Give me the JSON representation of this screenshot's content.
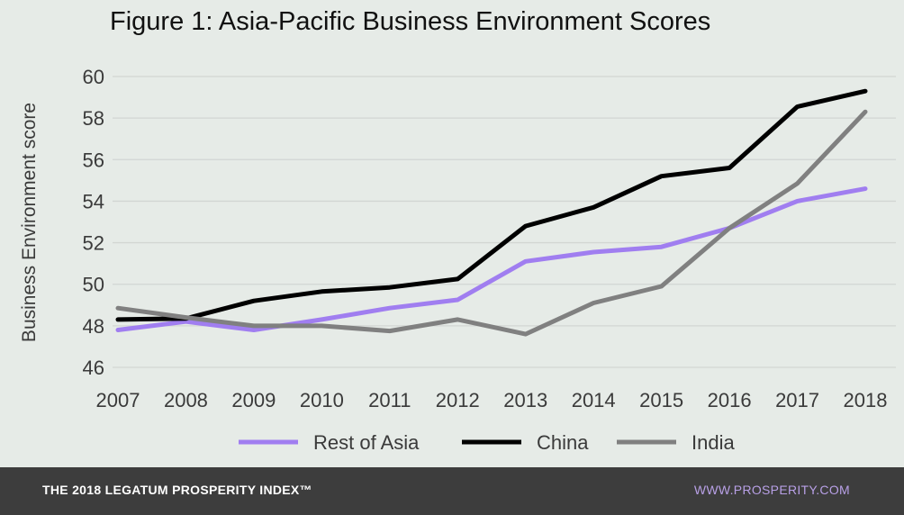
{
  "chart_data": {
    "type": "line",
    "title": "Figure 1: Asia-Pacific Business Environment Scores",
    "xlabel": "",
    "ylabel": "Business Environment score",
    "x": [
      "2007",
      "2008",
      "2009",
      "2010",
      "2011",
      "2012",
      "2013",
      "2014",
      "2015",
      "2016",
      "2017",
      "2018"
    ],
    "ylim": [
      46,
      60
    ],
    "yticks": [
      "46",
      "48",
      "50",
      "52",
      "54",
      "56",
      "58",
      "60"
    ],
    "grid": true,
    "legend_position": "bottom",
    "series": [
      {
        "name": "Rest of Asia",
        "color": "#a07ef0",
        "values": [
          47.8,
          48.2,
          47.8,
          48.3,
          48.85,
          49.25,
          51.1,
          51.55,
          51.8,
          52.7,
          54.0,
          54.6
        ]
      },
      {
        "name": "China",
        "color": "#000000",
        "values": [
          48.3,
          48.35,
          49.2,
          49.65,
          49.85,
          50.25,
          52.8,
          53.7,
          55.2,
          55.6,
          58.55,
          59.3
        ]
      },
      {
        "name": "India",
        "color": "#808080",
        "values": [
          48.85,
          48.4,
          48.0,
          48.0,
          47.75,
          48.3,
          47.6,
          49.1,
          49.9,
          52.7,
          54.85,
          58.3
        ]
      }
    ]
  },
  "footer": {
    "left_text": "THE 2018 LEGATUM PROSPERITY INDEX™",
    "right_text": "WWW.PROSPERITY.COM"
  }
}
